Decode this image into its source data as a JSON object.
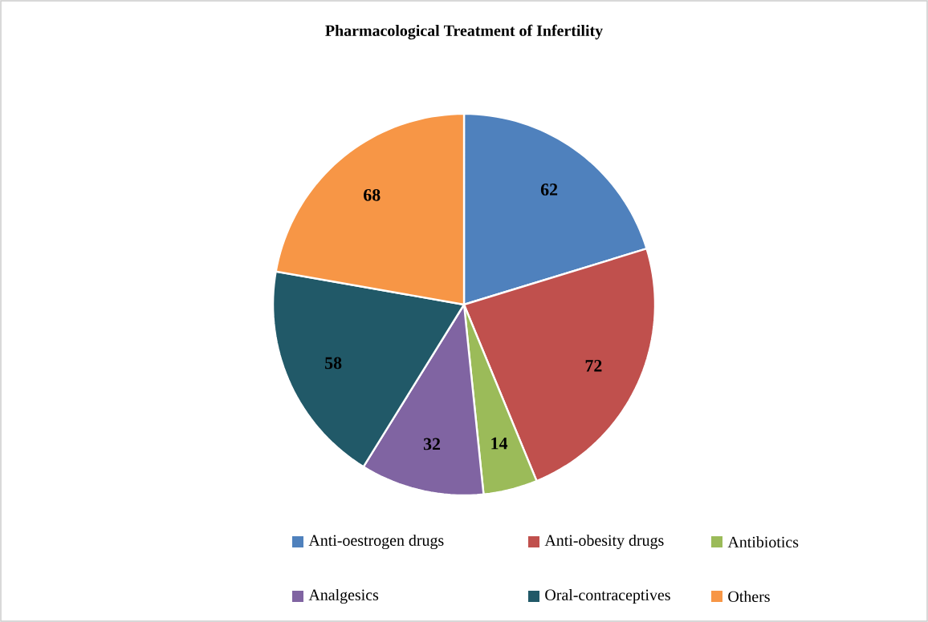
{
  "chart_data": {
    "type": "pie",
    "title": "Pharmacological  Treatment of Infertility",
    "categories": [
      "Anti-oestrogen drugs",
      "Anti-obesity drugs",
      "Antibiotics",
      "Analgesics",
      "Oral-contraceptives",
      "Others"
    ],
    "values": [
      62,
      72,
      14,
      32,
      58,
      68
    ],
    "colors": [
      "#4f81bd",
      "#c0504d",
      "#9bbb59",
      "#8064a2",
      "#215968",
      "#f79646"
    ],
    "data_labels": true,
    "legend": "bottom"
  }
}
